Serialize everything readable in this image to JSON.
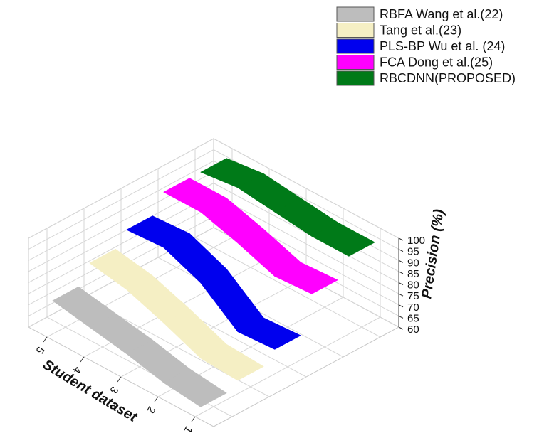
{
  "chart_data": {
    "type": "3d-ribbon-line",
    "title": "",
    "xlabel": "Student dataset",
    "ylabel": "",
    "zlabel": "Precision (%)",
    "x_categories": [
      "1",
      "2",
      "3",
      "4",
      "5"
    ],
    "z_ticks": [
      "60",
      "65",
      "70",
      "75",
      "80",
      "85",
      "90",
      "95",
      "100"
    ],
    "zlim": [
      60,
      100
    ],
    "grid": true,
    "legend_position": "top-right",
    "series": [
      {
        "name": "RBFA Wang et al.(22)",
        "color": "#bdbdbd",
        "values": [
          63,
          65,
          69,
          72,
          75
        ]
      },
      {
        "name": "Tang et al.(23)",
        "color": "#f5efc4",
        "values": [
          66,
          67,
          74,
          80,
          83
        ]
      },
      {
        "name": "PLS-BP Wu et al. (24)",
        "color": "#0000ee",
        "values": [
          71,
          70,
          83,
          90,
          89
        ]
      },
      {
        "name": "FCA Dong et al.(25)",
        "color": "#ff00ff",
        "values": [
          87,
          86,
          92,
          97,
          97
        ]
      },
      {
        "name": "RBCDNN(PROPOSED)",
        "color": "#007a18",
        "values": [
          95,
          95,
          97,
          99,
          97
        ]
      }
    ]
  }
}
